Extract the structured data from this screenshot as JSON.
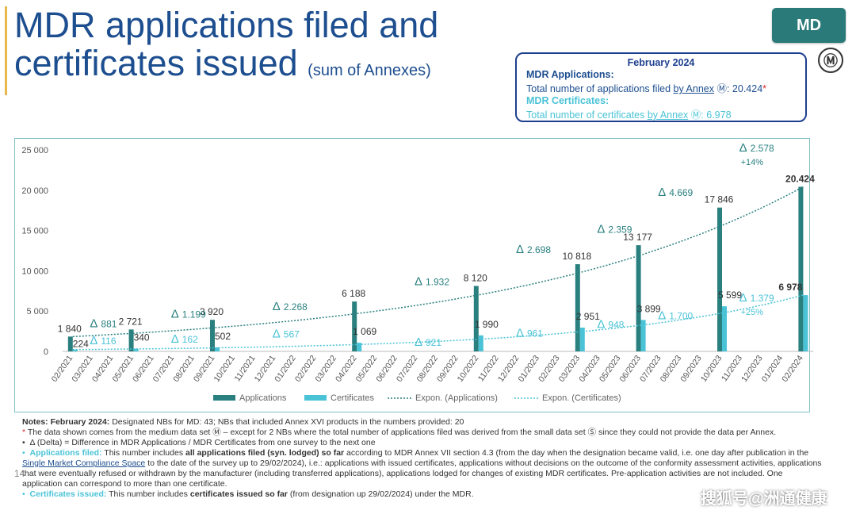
{
  "title": {
    "line1": "MDR applications filed and",
    "line2": "certificates issued",
    "subtitle": "(sum of Annexes)"
  },
  "badge": {
    "label": "MD",
    "symbol": "Ⓜ"
  },
  "summary": {
    "date": "February 2024",
    "apps_heading": "MDR Applications:",
    "apps_text_prefix": "Total number of applications filed",
    "apps_link": "by Annex",
    "apps_symbol": "Ⓜ",
    "apps_value": ": 20.424",
    "apps_star": "*",
    "certs_heading": "MDR Certificates:",
    "certs_text_prefix": "Total number of certificates",
    "certs_link": "by Annex",
    "certs_symbol": "Ⓜ",
    "certs_value": ": 6.978"
  },
  "chart_data": {
    "type": "bar",
    "categories": [
      "02/2021",
      "03/2021",
      "04/2021",
      "05/2021",
      "06/2021",
      "07/2021",
      "08/2021",
      "09/2021",
      "10/2021",
      "11/2021",
      "12/2021",
      "01/2022",
      "02/2022",
      "03/2022",
      "04/2022",
      "05/2022",
      "06/2022",
      "07/2022",
      "08/2022",
      "09/2022",
      "10/2022",
      "11/2022",
      "12/2022",
      "01/2023",
      "02/2023",
      "03/2023",
      "04/2023",
      "05/2023",
      "06/2023",
      "07/2023",
      "08/2023",
      "09/2023",
      "10/2023",
      "11/2023",
      "12/2023",
      "01/2024",
      "02/2024"
    ],
    "series": [
      {
        "name": "Applications",
        "color": "#2a7f7f",
        "values": [
          1840,
          null,
          null,
          2721,
          null,
          null,
          null,
          3920,
          null,
          null,
          null,
          null,
          null,
          null,
          6188,
          null,
          null,
          null,
          null,
          null,
          8120,
          null,
          null,
          null,
          null,
          10818,
          null,
          null,
          13177,
          null,
          null,
          null,
          17846,
          null,
          null,
          null,
          20424
        ],
        "labels": [
          "1 840",
          null,
          null,
          "2 721",
          null,
          null,
          null,
          "3 920",
          null,
          null,
          null,
          null,
          null,
          null,
          "6 188",
          null,
          null,
          null,
          null,
          null,
          "8 120",
          null,
          null,
          null,
          null,
          "10 818",
          null,
          null,
          "13 177",
          null,
          null,
          null,
          "17 846",
          null,
          null,
          null,
          "20.424"
        ]
      },
      {
        "name": "Certificates",
        "color": "#4ac3d6",
        "values": [
          224,
          null,
          null,
          340,
          null,
          null,
          null,
          502,
          null,
          null,
          null,
          null,
          null,
          null,
          1069,
          null,
          null,
          null,
          null,
          null,
          1990,
          null,
          null,
          null,
          null,
          2951,
          null,
          null,
          3899,
          null,
          null,
          null,
          5599,
          null,
          null,
          null,
          6978
        ],
        "labels": [
          "224",
          null,
          null,
          "340",
          null,
          null,
          null,
          "502",
          null,
          null,
          null,
          null,
          null,
          null,
          "1 069",
          null,
          null,
          null,
          null,
          null,
          "1 990",
          null,
          null,
          null,
          null,
          "2 951",
          null,
          null,
          "3 899",
          null,
          null,
          null,
          "5 599",
          null,
          null,
          null,
          "6 978"
        ]
      }
    ],
    "trendlines": [
      {
        "name": "Expon. (Applications)",
        "color": "#2a7f7f",
        "style": "dotted"
      },
      {
        "name": "Expon. (Certificates)",
        "color": "#4ac3d6",
        "style": "dotted"
      }
    ],
    "deltas_applications": [
      {
        "x": "03/2021",
        "label": "881",
        "y": 3000
      },
      {
        "x": "07/2021",
        "label": "1.199",
        "y": 4200
      },
      {
        "x": "12/2021",
        "label": "2.268",
        "y": 5100
      },
      {
        "x": "07/2022",
        "label": "1.932",
        "y": 8200
      },
      {
        "x": "12/2022",
        "label": "2.698",
        "y": 12200
      },
      {
        "x": "04/2023",
        "label": "2.359",
        "y": 14700
      },
      {
        "x": "07/2023",
        "label": "4.669",
        "y": 19300
      },
      {
        "x": "11/2023",
        "label": "2.578",
        "y": 24800,
        "pct": "+14%"
      }
    ],
    "deltas_certificates": [
      {
        "x": "03/2021",
        "label": "116",
        "y": 900
      },
      {
        "x": "07/2021",
        "label": "162",
        "y": 1100
      },
      {
        "x": "12/2021",
        "label": "567",
        "y": 1700
      },
      {
        "x": "07/2022",
        "label": "921",
        "y": 700
      },
      {
        "x": "12/2022",
        "label": "961",
        "y": 1800
      },
      {
        "x": "04/2023",
        "label": "948",
        "y": 2900
      },
      {
        "x": "07/2023",
        "label": "1.700",
        "y": 4000
      },
      {
        "x": "11/2023",
        "label": "1.379",
        "y": 6200,
        "pct": "+25%"
      }
    ],
    "delta_symbol": "Δ",
    "yticks": [
      "0",
      "5 000",
      "10 000",
      "15 000",
      "20 000",
      "25 000"
    ],
    "ylim": [
      0,
      25000
    ],
    "legend": [
      "Applications",
      "Certificates",
      "Expon. (Applications)",
      "Expon. (Certificates)"
    ],
    "legend_position": "bottom",
    "grid": false
  },
  "notes": {
    "line1_bold": "Notes: February 2024:",
    "line1_text": " Designated NBs for MD: 43; NBs that included Annex XVI products in the numbers provided: 20",
    "line2_star": "*",
    "line2_text": " The data shown comes from the medium data set Ⓜ – except for 2 NBs where the total number of applications filed was derived from the small data set Ⓢ since they could not provide the data per Annex.",
    "line3": "Δ (Delta) = Difference in MDR Applications / MDR Certificates from one survey to the next one",
    "line4_label": "Applications filed:",
    "line4_a": " This number includes ",
    "line4_b": "all applications filed (syn. lodged) so far",
    "line4_c": " according to MDR Annex VII section 4.3 (from the day when the designation became valid, i.e. one day after publication in the ",
    "line4_link": "Single Market Compliance Space",
    "line4_d": " to the date of the survey up to 29/02/2024), i.e.: applications with issued certificates, applications without decisions on the outcome of the conformity assessment activities, applications that were eventually refused or withdrawn by the manufacturer (including transferred applications), applications lodged for changes of existing MDR certificates. Pre-application activities are not included. One application can correspond to more than one certificate.",
    "line5_label": "Certificates issued:",
    "line5_a": " This number includes ",
    "line5_b": "certificates issued so far",
    "line5_c": " (from designation up 29/02/2024) under the MDR."
  },
  "page_number": "14",
  "watermark": "搜狐号@洲通健康"
}
